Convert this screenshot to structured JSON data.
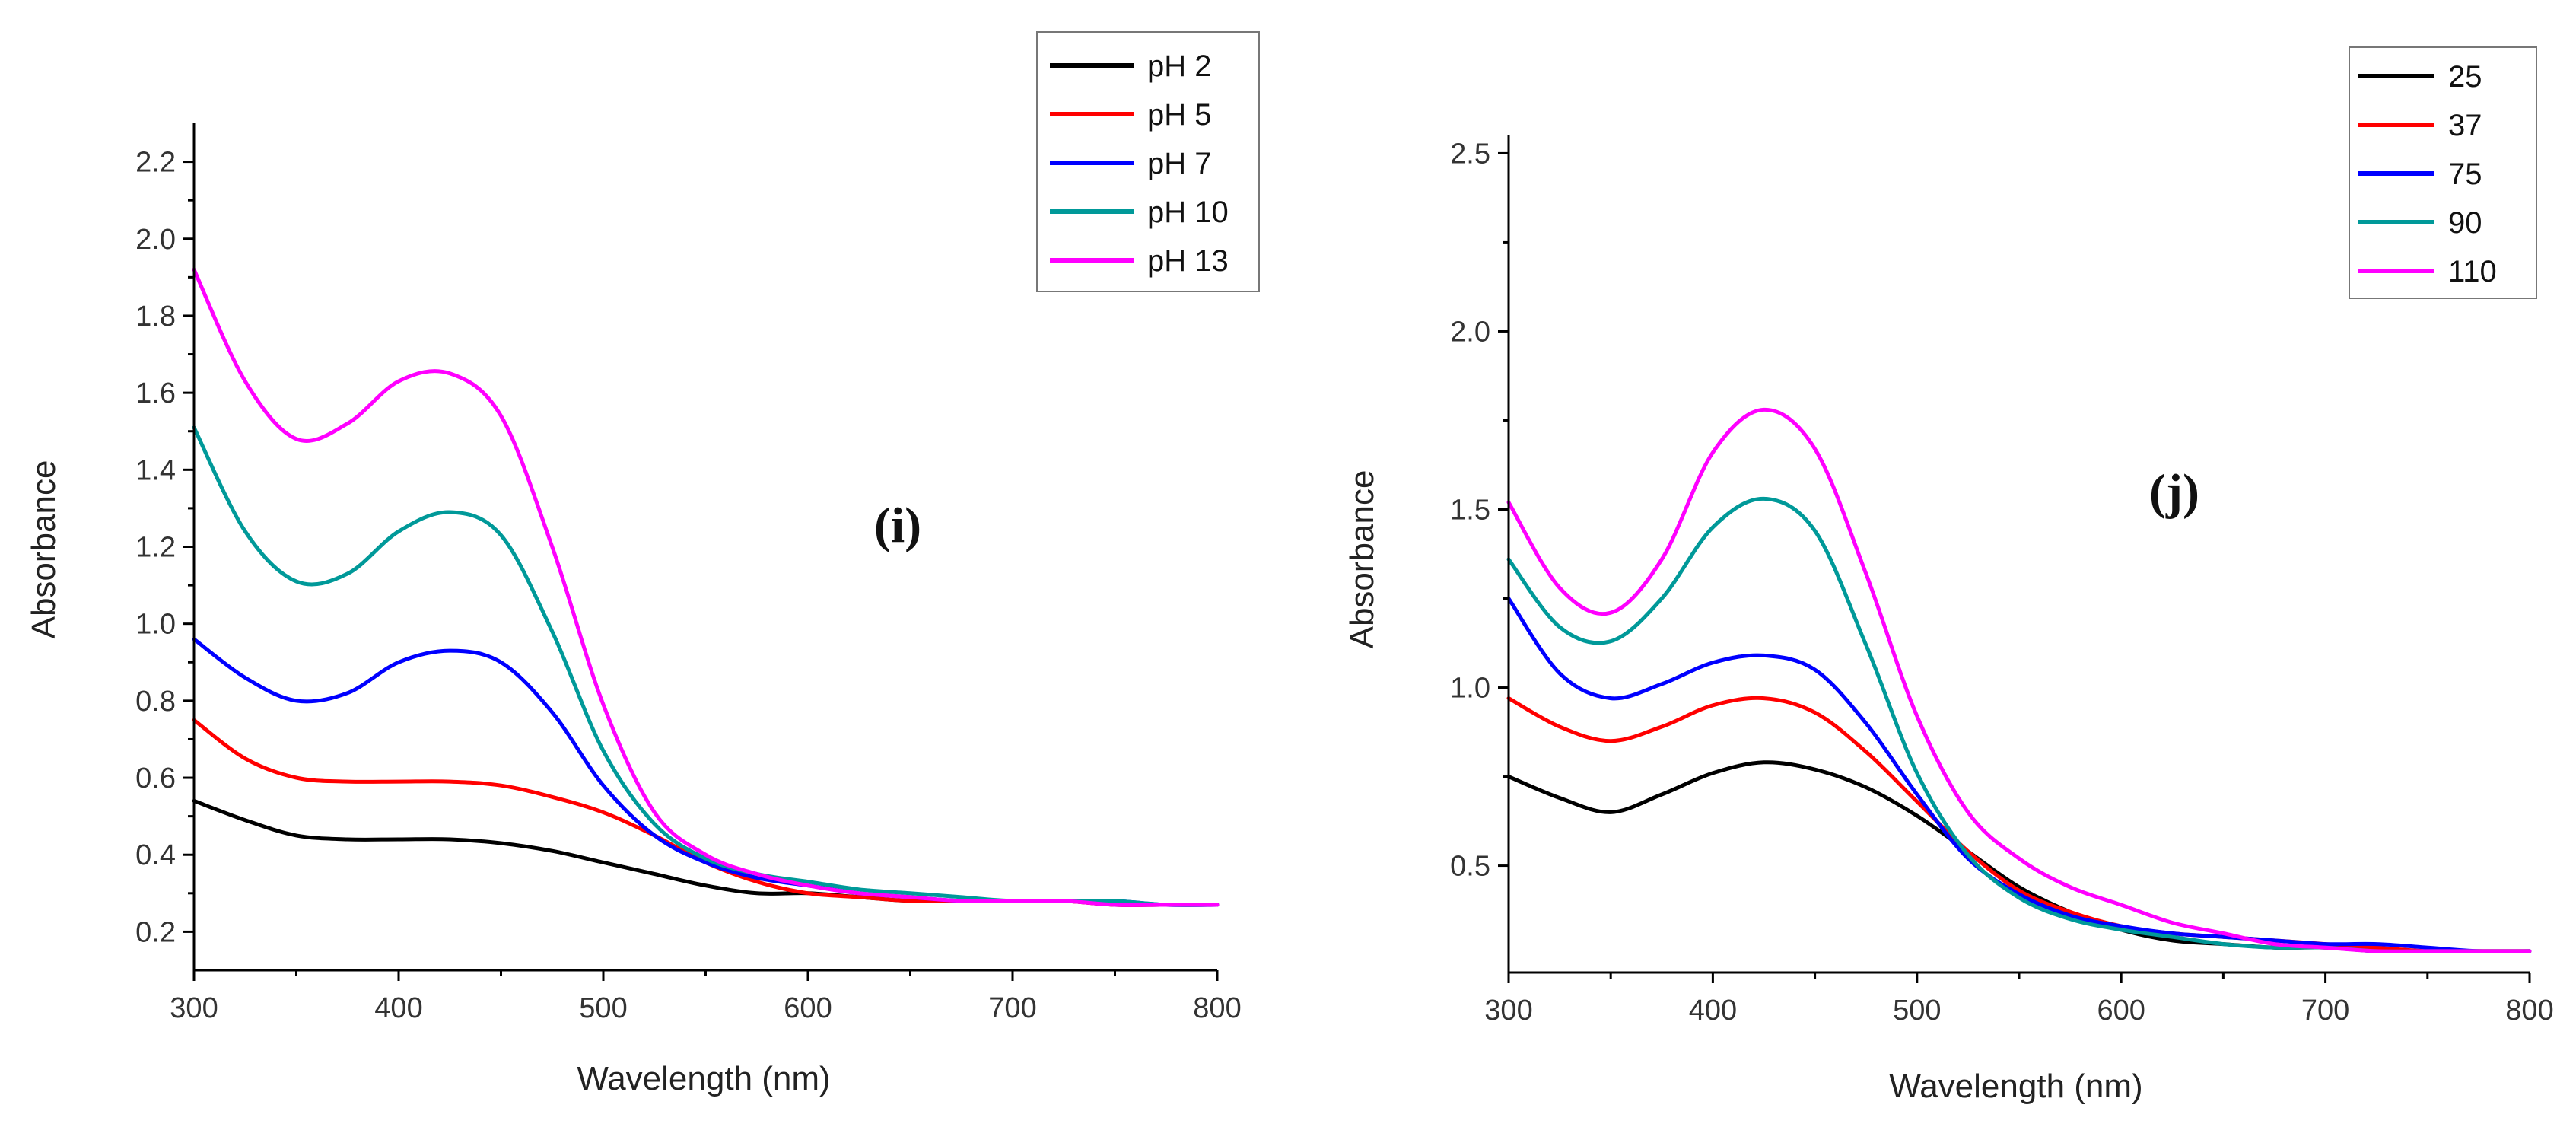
{
  "chart_data": [
    {
      "type": "line",
      "id": "panel-i",
      "panel_label": "(i)",
      "xlabel": "Wavelength (nm)",
      "ylabel": "Absorbance",
      "xlim": [
        300,
        800
      ],
      "ylim": [
        0.1,
        2.3
      ],
      "xticks": [
        300,
        400,
        500,
        600,
        700,
        800
      ],
      "xtick_labels": [
        "300",
        "400",
        "500",
        "600",
        "700",
        "800"
      ],
      "yticks": [
        0.2,
        0.4,
        0.6,
        0.8,
        1.0,
        1.2,
        1.4,
        1.6,
        1.8,
        2.0,
        2.2
      ],
      "ytick_labels": [
        "0.2",
        "0.4",
        "0.6",
        "0.8",
        "1.0",
        "1.2",
        "1.4",
        "1.6",
        "1.8",
        "2.0",
        "2.2"
      ],
      "legend_position": "top-right",
      "x": [
        300,
        325,
        350,
        375,
        400,
        425,
        450,
        475,
        500,
        525,
        550,
        575,
        600,
        625,
        650,
        675,
        700,
        725,
        750,
        775,
        800
      ],
      "series": [
        {
          "name": "pH 2",
          "color": "#000000",
          "values": [
            0.54,
            0.49,
            0.45,
            0.44,
            0.44,
            0.44,
            0.43,
            0.41,
            0.38,
            0.35,
            0.32,
            0.3,
            0.3,
            0.29,
            0.28,
            0.28,
            0.28,
            0.28,
            0.27,
            0.27,
            0.27
          ]
        },
        {
          "name": "pH 5",
          "color": "#ff0000",
          "values": [
            0.75,
            0.65,
            0.6,
            0.59,
            0.59,
            0.59,
            0.58,
            0.55,
            0.51,
            0.45,
            0.38,
            0.33,
            0.3,
            0.29,
            0.28,
            0.28,
            0.28,
            0.28,
            0.27,
            0.27,
            0.27
          ]
        },
        {
          "name": "pH 7",
          "color": "#0000ff",
          "values": [
            0.96,
            0.86,
            0.8,
            0.82,
            0.9,
            0.93,
            0.9,
            0.77,
            0.58,
            0.45,
            0.38,
            0.34,
            0.32,
            0.3,
            0.29,
            0.28,
            0.28,
            0.28,
            0.28,
            0.27,
            0.27
          ]
        },
        {
          "name": "pH 10",
          "color": "#009999",
          "values": [
            1.51,
            1.24,
            1.11,
            1.13,
            1.24,
            1.29,
            1.23,
            0.98,
            0.67,
            0.48,
            0.39,
            0.35,
            0.33,
            0.31,
            0.3,
            0.29,
            0.28,
            0.28,
            0.28,
            0.27,
            0.27
          ]
        },
        {
          "name": "pH 13",
          "color": "#ff00ff",
          "values": [
            1.92,
            1.63,
            1.48,
            1.52,
            1.63,
            1.65,
            1.54,
            1.2,
            0.79,
            0.51,
            0.4,
            0.35,
            0.32,
            0.3,
            0.29,
            0.28,
            0.28,
            0.28,
            0.27,
            0.27,
            0.27
          ]
        }
      ]
    },
    {
      "type": "line",
      "id": "panel-j",
      "panel_label": "(j)",
      "xlabel": "Wavelength (nm)",
      "ylabel": "Absorbance",
      "xlim": [
        300,
        800
      ],
      "ylim": [
        0.2,
        2.55
      ],
      "xticks": [
        300,
        400,
        500,
        600,
        700,
        800
      ],
      "xtick_labels": [
        "300",
        "400",
        "500",
        "600",
        "700",
        "800"
      ],
      "yticks": [
        0.5,
        1.0,
        1.5,
        2.0,
        2.5
      ],
      "ytick_labels": [
        "0.5",
        "1.0",
        "1.5",
        "2.0",
        "2.5"
      ],
      "legend_position": "top-right",
      "x": [
        300,
        325,
        350,
        375,
        400,
        425,
        450,
        475,
        500,
        525,
        550,
        575,
        600,
        625,
        650,
        675,
        700,
        725,
        750,
        775,
        800
      ],
      "series": [
        {
          "name": "25",
          "color": "#000000",
          "values": [
            0.75,
            0.69,
            0.65,
            0.7,
            0.76,
            0.79,
            0.77,
            0.72,
            0.64,
            0.54,
            0.44,
            0.37,
            0.32,
            0.29,
            0.28,
            0.27,
            0.27,
            0.26,
            0.26,
            0.26,
            0.26
          ]
        },
        {
          "name": "37",
          "color": "#ff0000",
          "values": [
            0.97,
            0.89,
            0.85,
            0.89,
            0.95,
            0.97,
            0.93,
            0.82,
            0.68,
            0.54,
            0.43,
            0.37,
            0.33,
            0.31,
            0.3,
            0.29,
            0.28,
            0.27,
            0.26,
            0.26,
            0.26
          ]
        },
        {
          "name": "75",
          "color": "#0000ff",
          "values": [
            1.25,
            1.04,
            0.97,
            1.01,
            1.07,
            1.09,
            1.05,
            0.9,
            0.7,
            0.52,
            0.42,
            0.36,
            0.33,
            0.31,
            0.3,
            0.29,
            0.28,
            0.28,
            0.27,
            0.26,
            0.26
          ]
        },
        {
          "name": "90",
          "color": "#009999",
          "values": [
            1.36,
            1.17,
            1.13,
            1.25,
            1.45,
            1.53,
            1.44,
            1.12,
            0.76,
            0.53,
            0.41,
            0.35,
            0.32,
            0.3,
            0.28,
            0.27,
            0.27,
            0.26,
            0.26,
            0.26,
            0.26
          ]
        },
        {
          "name": "110",
          "color": "#ff00ff",
          "values": [
            1.52,
            1.28,
            1.21,
            1.36,
            1.66,
            1.78,
            1.67,
            1.32,
            0.92,
            0.65,
            0.52,
            0.44,
            0.39,
            0.34,
            0.31,
            0.28,
            0.27,
            0.26,
            0.26,
            0.26,
            0.26
          ]
        }
      ]
    }
  ]
}
